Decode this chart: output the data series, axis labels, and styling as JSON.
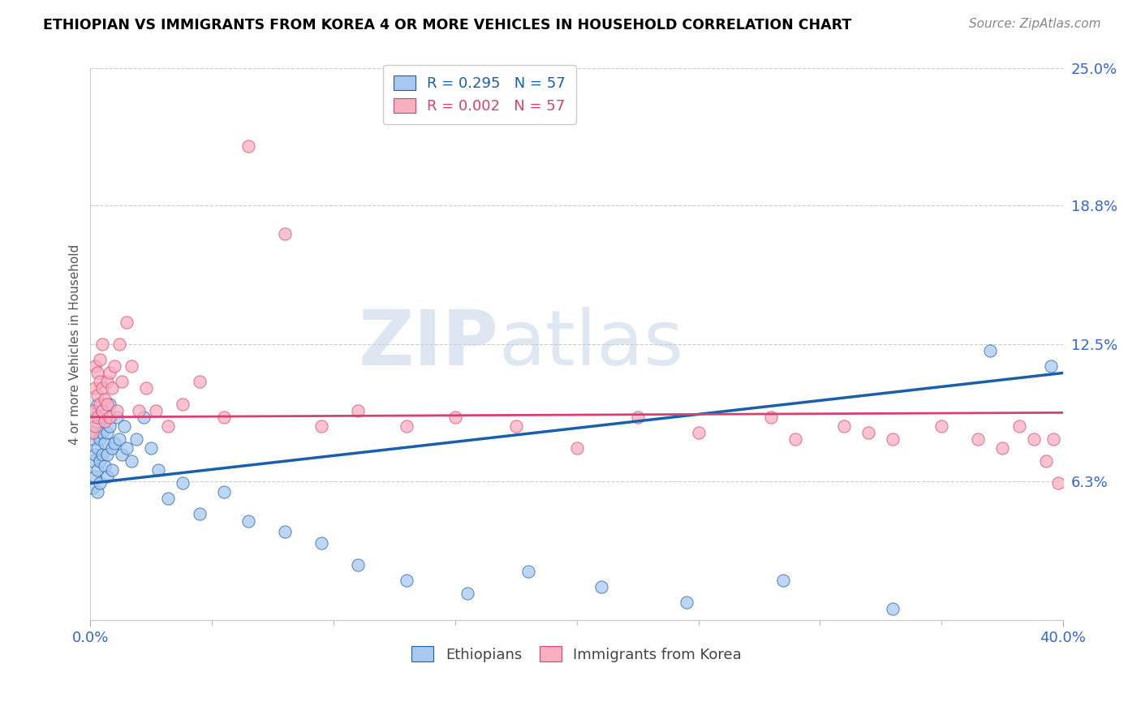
{
  "title": "ETHIOPIAN VS IMMIGRANTS FROM KOREA 4 OR MORE VEHICLES IN HOUSEHOLD CORRELATION CHART",
  "source": "Source: ZipAtlas.com",
  "ylabel": "4 or more Vehicles in Household",
  "xlim": [
    0.0,
    0.4
  ],
  "ylim": [
    0.0,
    0.25
  ],
  "xtick_labels": [
    "0.0%",
    "40.0%"
  ],
  "ytick_labels": [
    "6.3%",
    "12.5%",
    "18.8%",
    "25.0%"
  ],
  "ytick_values": [
    0.063,
    0.125,
    0.188,
    0.25
  ],
  "R_ethiopian": 0.295,
  "R_korean": 0.002,
  "N": 57,
  "legend_label_1": "Ethiopians",
  "legend_label_2": "Immigrants from Korea",
  "color_ethiopian": "#a8c8f0",
  "color_korean": "#f8b0c0",
  "line_color_ethiopian": "#1a5faa",
  "line_color_korean": "#d84070",
  "eth_line_start_y": 0.062,
  "eth_line_end_y": 0.112,
  "kor_line_start_y": 0.092,
  "kor_line_end_y": 0.094,
  "eth_x": [
    0.001,
    0.001,
    0.001,
    0.002,
    0.002,
    0.002,
    0.002,
    0.003,
    0.003,
    0.003,
    0.003,
    0.003,
    0.004,
    0.004,
    0.004,
    0.004,
    0.005,
    0.005,
    0.005,
    0.006,
    0.006,
    0.006,
    0.007,
    0.007,
    0.007,
    0.008,
    0.008,
    0.009,
    0.009,
    0.01,
    0.011,
    0.012,
    0.013,
    0.014,
    0.015,
    0.017,
    0.019,
    0.022,
    0.025,
    0.028,
    0.032,
    0.038,
    0.045,
    0.055,
    0.065,
    0.08,
    0.095,
    0.11,
    0.13,
    0.155,
    0.18,
    0.21,
    0.245,
    0.285,
    0.33,
    0.37,
    0.395
  ],
  "eth_y": [
    0.072,
    0.06,
    0.082,
    0.075,
    0.065,
    0.085,
    0.095,
    0.068,
    0.078,
    0.088,
    0.058,
    0.098,
    0.072,
    0.082,
    0.092,
    0.062,
    0.085,
    0.095,
    0.075,
    0.08,
    0.09,
    0.07,
    0.085,
    0.075,
    0.065,
    0.088,
    0.098,
    0.078,
    0.068,
    0.08,
    0.092,
    0.082,
    0.075,
    0.088,
    0.078,
    0.072,
    0.082,
    0.092,
    0.078,
    0.068,
    0.055,
    0.062,
    0.048,
    0.058,
    0.045,
    0.04,
    0.035,
    0.025,
    0.018,
    0.012,
    0.022,
    0.015,
    0.008,
    0.018,
    0.005,
    0.122,
    0.115
  ],
  "kor_x": [
    0.001,
    0.001,
    0.002,
    0.002,
    0.002,
    0.003,
    0.003,
    0.003,
    0.004,
    0.004,
    0.004,
    0.005,
    0.005,
    0.005,
    0.006,
    0.006,
    0.007,
    0.007,
    0.008,
    0.008,
    0.009,
    0.01,
    0.011,
    0.012,
    0.013,
    0.015,
    0.017,
    0.02,
    0.023,
    0.027,
    0.032,
    0.038,
    0.045,
    0.055,
    0.065,
    0.08,
    0.095,
    0.11,
    0.13,
    0.15,
    0.175,
    0.2,
    0.225,
    0.25,
    0.28,
    0.31,
    0.33,
    0.35,
    0.365,
    0.375,
    0.382,
    0.388,
    0.393,
    0.396,
    0.398,
    0.32,
    0.29
  ],
  "kor_y": [
    0.095,
    0.085,
    0.105,
    0.088,
    0.115,
    0.092,
    0.102,
    0.112,
    0.098,
    0.108,
    0.118,
    0.095,
    0.105,
    0.125,
    0.1,
    0.09,
    0.108,
    0.098,
    0.112,
    0.092,
    0.105,
    0.115,
    0.095,
    0.125,
    0.108,
    0.135,
    0.115,
    0.095,
    0.105,
    0.095,
    0.088,
    0.098,
    0.108,
    0.092,
    0.215,
    0.175,
    0.088,
    0.095,
    0.088,
    0.092,
    0.088,
    0.078,
    0.092,
    0.085,
    0.092,
    0.088,
    0.082,
    0.088,
    0.082,
    0.078,
    0.088,
    0.082,
    0.072,
    0.082,
    0.062,
    0.085,
    0.082
  ]
}
